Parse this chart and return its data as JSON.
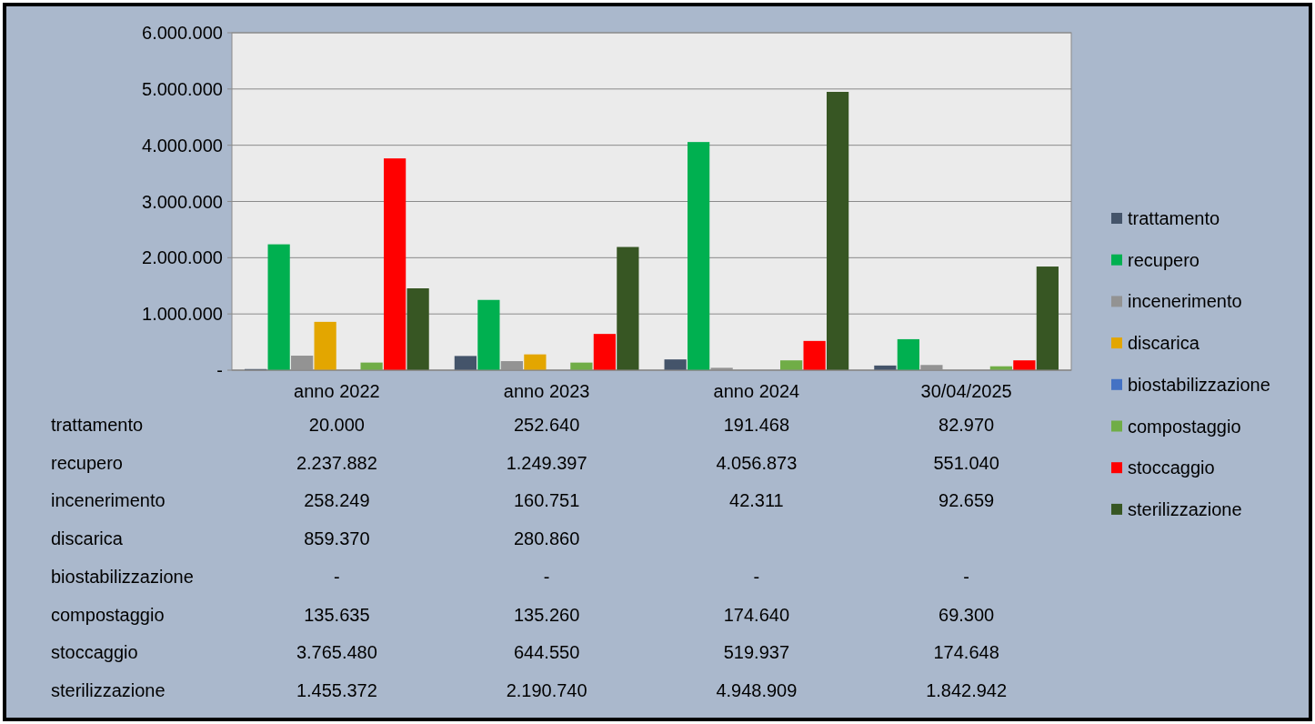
{
  "chart_data": {
    "type": "bar",
    "categories": [
      "anno 2022",
      "anno 2023",
      "anno 2024",
      "30/04/2025"
    ],
    "series": [
      {
        "name": "trattamento",
        "color": "#44546a",
        "values": [
          20000,
          252640,
          191468,
          82970
        ],
        "value_labels": [
          "20.000",
          "252.640",
          "191.468",
          "82.970"
        ]
      },
      {
        "name": "recupero",
        "color": "#00b050",
        "values": [
          2237882,
          1249397,
          4056873,
          551040
        ],
        "value_labels": [
          "2.237.882",
          "1.249.397",
          "4.056.873",
          "551.040"
        ]
      },
      {
        "name": "incenerimento",
        "color": "#939393",
        "values": [
          258249,
          160751,
          42311,
          92659
        ],
        "value_labels": [
          "258.249",
          "160.751",
          "42.311",
          "92.659"
        ]
      },
      {
        "name": "discarica",
        "color": "#e3a600",
        "values": [
          859370,
          280860,
          null,
          null
        ],
        "value_labels": [
          "859.370",
          "280.860",
          null,
          null
        ]
      },
      {
        "name": "biostabilizzazione",
        "color": "#4472c4",
        "values": [
          0,
          0,
          0,
          0
        ],
        "value_labels": [
          "-",
          "-",
          "-",
          "-"
        ]
      },
      {
        "name": "compostaggio",
        "color": "#70ad47",
        "values": [
          135635,
          135260,
          174640,
          69300
        ],
        "value_labels": [
          "135.635",
          "135.260",
          "174.640",
          "69.300"
        ]
      },
      {
        "name": "stoccaggio",
        "color": "#ff0000",
        "values": [
          3765480,
          644550,
          519937,
          174648
        ],
        "value_labels": [
          "3.765.480",
          "644.550",
          "519.937",
          "174.648"
        ]
      },
      {
        "name": "sterilizzazione",
        "color": "#375623",
        "values": [
          1455372,
          2190740,
          4948909,
          1842942
        ],
        "value_labels": [
          "1.455.372",
          "2.190.740",
          "4.948.909",
          "1.842.942"
        ]
      }
    ],
    "ylim": [
      0,
      6000000
    ],
    "yticks": [
      {
        "value": 0,
        "label": "-"
      },
      {
        "value": 1000000,
        "label": "1.000.000"
      },
      {
        "value": 2000000,
        "label": "2.000.000"
      },
      {
        "value": 3000000,
        "label": "3.000.000"
      },
      {
        "value": 4000000,
        "label": "4.000.000"
      },
      {
        "value": 5000000,
        "label": "5.000.000"
      },
      {
        "value": 6000000,
        "label": "6.000.000"
      }
    ],
    "grid": "y",
    "legend": "right"
  }
}
